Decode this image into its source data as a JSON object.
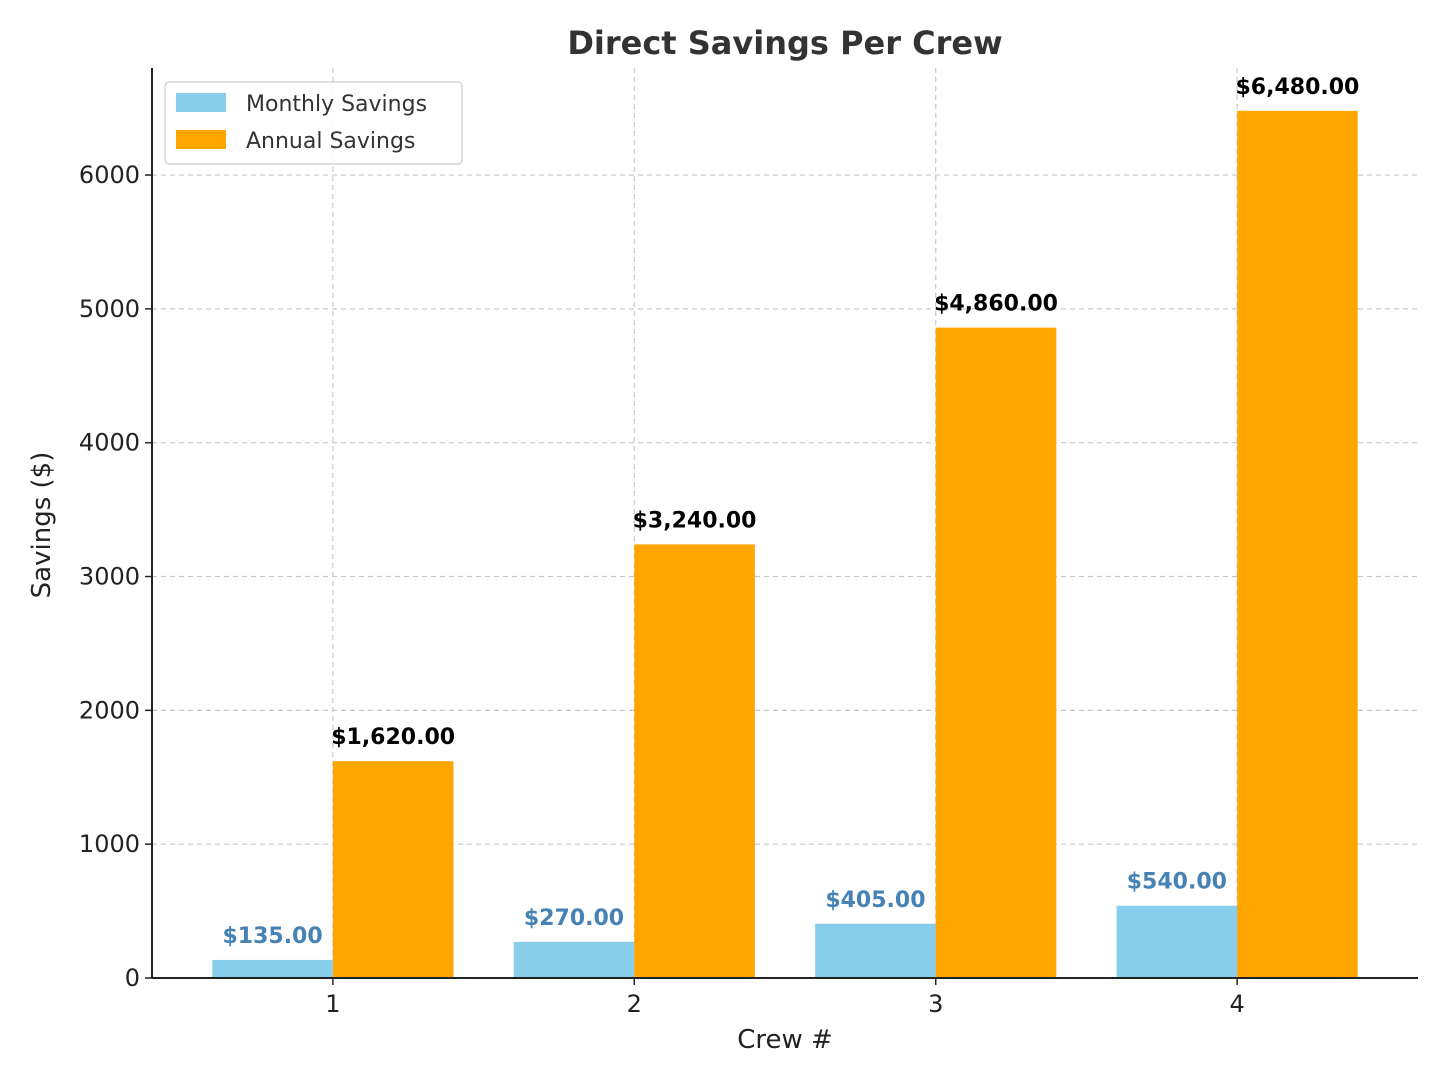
{
  "chart_data": {
    "type": "bar",
    "title": "Direct Savings Per Crew",
    "xlabel": "Crew #",
    "ylabel": "Savings ($)",
    "categories": [
      "1",
      "2",
      "3",
      "4"
    ],
    "ylim": [
      0,
      6800
    ],
    "yticks": [
      0,
      1000,
      2000,
      3000,
      4000,
      5000,
      6000
    ],
    "grid": true,
    "legend_position": "top-left",
    "series": [
      {
        "name": "Monthly Savings",
        "color": "#87CEEB",
        "label_color": "#4682B4",
        "values": [
          135,
          270,
          405,
          540
        ],
        "labels": [
          "$135.00",
          "$270.00",
          "$405.00",
          "$540.00"
        ]
      },
      {
        "name": "Annual Savings",
        "color": "#FFA500",
        "label_color": "#000000",
        "values": [
          1620,
          3240,
          4860,
          6480
        ],
        "labels": [
          "$1,620.00",
          "$3,240.00",
          "$4,860.00",
          "$6,480.00"
        ]
      }
    ]
  }
}
